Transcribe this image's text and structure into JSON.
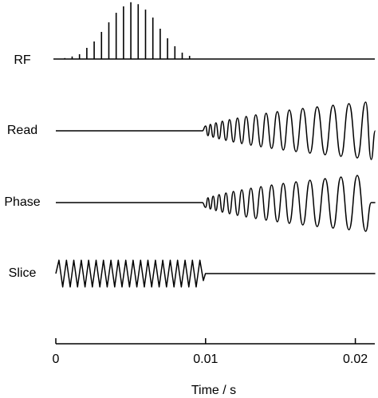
{
  "chart_data": {
    "type": "line",
    "xlabel": "Time / s",
    "xlim": [
      0,
      0.0213
    ],
    "xticks": [
      0,
      0.01,
      0.02
    ],
    "series": [
      {
        "name": "RF",
        "type": "stem",
        "color": "#000000",
        "x": [
          0.0006,
          0.00109,
          0.00158,
          0.00207,
          0.00256,
          0.00305,
          0.00354,
          0.00403,
          0.00452,
          0.00501,
          0.0055,
          0.00599,
          0.00648,
          0.00697,
          0.00746,
          0.00795,
          0.00844,
          0.00893
        ],
        "values": [
          0.03,
          0.08,
          0.15,
          0.35,
          0.55,
          0.85,
          1.15,
          1.45,
          1.65,
          1.78,
          1.72,
          1.55,
          1.3,
          0.95,
          0.65,
          0.4,
          0.2,
          0.1
        ]
      },
      {
        "name": "Read",
        "smooth": true,
        "color": "#000000",
        "x": [
          0,
          0.00979,
          0.01,
          0.01016,
          0.01032,
          0.01051,
          0.01069,
          0.0109,
          0.01112,
          0.01136,
          0.0116,
          0.01186,
          0.01213,
          0.01242,
          0.01271,
          0.01303,
          0.01335,
          0.0137,
          0.01404,
          0.01441,
          0.01479,
          0.01519,
          0.01559,
          0.01604,
          0.01649,
          0.01697,
          0.01745,
          0.01798,
          0.01851,
          0.01904,
          0.01957,
          0.02013,
          0.02069,
          0.02106,
          0.02133
        ],
        "values": [
          0,
          0,
          0.15,
          -0.15,
          0.2,
          -0.2,
          0.25,
          -0.25,
          0.3,
          -0.3,
          0.35,
          -0.35,
          0.4,
          -0.4,
          0.45,
          -0.45,
          0.5,
          -0.5,
          0.55,
          -0.55,
          0.6,
          -0.6,
          0.65,
          -0.65,
          0.7,
          -0.7,
          0.75,
          -0.75,
          0.8,
          -0.8,
          0.85,
          -0.85,
          0.9,
          -0.9,
          0
        ]
      },
      {
        "name": "Phase",
        "smooth": true,
        "color": "#000000",
        "x": [
          0,
          0.00979,
          0.01,
          0.01016,
          0.01032,
          0.01051,
          0.01069,
          0.0109,
          0.01112,
          0.01136,
          0.0116,
          0.01186,
          0.01213,
          0.01242,
          0.01271,
          0.01303,
          0.01335,
          0.0137,
          0.01404,
          0.01441,
          0.01479,
          0.01519,
          0.01559,
          0.01604,
          0.01649,
          0.01697,
          0.01745,
          0.01798,
          0.01851,
          0.01904,
          0.01957,
          0.02013,
          0.02069,
          0.02106,
          0.02133
        ],
        "values": [
          0,
          0,
          -0.15,
          0.15,
          -0.2,
          0.2,
          -0.25,
          0.25,
          -0.3,
          0.3,
          -0.35,
          0.35,
          -0.4,
          0.4,
          -0.45,
          0.45,
          -0.5,
          0.5,
          -0.55,
          0.55,
          -0.6,
          0.6,
          -0.65,
          0.65,
          -0.7,
          0.7,
          -0.75,
          0.75,
          -0.8,
          0.8,
          -0.85,
          0.85,
          -0.9,
          0,
          0
        ]
      },
      {
        "name": "Slice",
        "color": "#000000",
        "x": [
          0,
          0.00021,
          0.00046,
          0.00071,
          0.00096,
          0.0012,
          0.00145,
          0.0017,
          0.00195,
          0.00219,
          0.00244,
          0.00269,
          0.00294,
          0.00318,
          0.00343,
          0.00368,
          0.00393,
          0.00417,
          0.00442,
          0.00467,
          0.00492,
          0.00516,
          0.00541,
          0.00566,
          0.00591,
          0.00615,
          0.0064,
          0.00665,
          0.0069,
          0.00714,
          0.00739,
          0.00764,
          0.00789,
          0.00813,
          0.00838,
          0.00863,
          0.00888,
          0.00912,
          0.00937,
          0.00962,
          0.00985,
          0.00999,
          0.02133
        ],
        "values": [
          0,
          0.42,
          -0.42,
          0.42,
          -0.42,
          0.42,
          -0.42,
          0.42,
          -0.42,
          0.42,
          -0.42,
          0.42,
          -0.42,
          0.42,
          -0.42,
          0.42,
          -0.42,
          0.42,
          -0.42,
          0.42,
          -0.42,
          0.42,
          -0.42,
          0.42,
          -0.42,
          0.42,
          -0.42,
          0.42,
          -0.42,
          0.42,
          -0.42,
          0.42,
          -0.42,
          0.42,
          -0.42,
          0.42,
          -0.42,
          0.42,
          -0.42,
          0.42,
          -0.22,
          0,
          0
        ]
      }
    ]
  }
}
